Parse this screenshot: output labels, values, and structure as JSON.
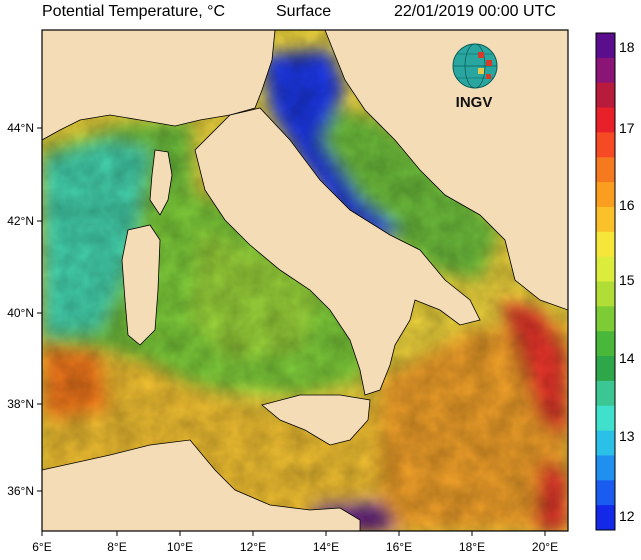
{
  "header": {
    "title_prefix": "Potential Temperature, ",
    "title_unit": "°C",
    "layer": "Surface",
    "datetime": "22/01/2019 00:00 UTC"
  },
  "logo": {
    "text": "INGV",
    "icon": "globe-icon"
  },
  "axes": {
    "x_labels": [
      "6°E",
      "8°E",
      "10°E",
      "12°E",
      "14°E",
      "16°E",
      "18°E",
      "20°E"
    ],
    "y_labels": [
      "44°N",
      "42°N",
      "40°N",
      "38°N",
      "36°N"
    ]
  },
  "colorbar": {
    "labels": [
      "18",
      "17",
      "16",
      "15",
      "14",
      "13",
      "12"
    ],
    "colors": [
      "#5a0d8c",
      "#8a1577",
      "#b81b3c",
      "#e8202a",
      "#f64a24",
      "#f5791f",
      "#f99e1f",
      "#fbc12a",
      "#f7e63a",
      "#dcec3c",
      "#b1dd36",
      "#7dcc35",
      "#49b83a",
      "#2ea64a",
      "#3cc694",
      "#40e1cc",
      "#2bc0e8",
      "#1f8ff0",
      "#1a5cf0",
      "#1428e8"
    ]
  },
  "colors": {
    "land": "#f3dcb6",
    "sea_green": "#6fc23d",
    "sea_cyan": "#45d6b0",
    "sea_yellow": "#f2e23f",
    "sea_orange": "#f5a32b",
    "sea_red": "#e8352a",
    "sea_blue": "#1f39e6",
    "sea_purple": "#5a1a8c"
  }
}
